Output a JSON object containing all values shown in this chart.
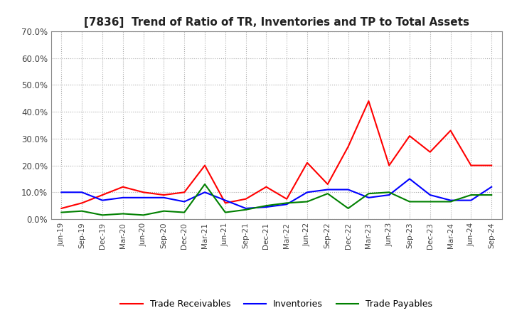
{
  "title": "[7836]  Trend of Ratio of TR, Inventories and TP to Total Assets",
  "x_labels": [
    "Jun-19",
    "Sep-19",
    "Dec-19",
    "Mar-20",
    "Jun-20",
    "Sep-20",
    "Dec-20",
    "Mar-21",
    "Jun-21",
    "Sep-21",
    "Dec-21",
    "Mar-22",
    "Jun-22",
    "Sep-22",
    "Dec-22",
    "Mar-23",
    "Jun-23",
    "Sep-23",
    "Dec-23",
    "Mar-24",
    "Jun-24",
    "Sep-24"
  ],
  "trade_receivables": [
    0.04,
    0.06,
    0.09,
    0.12,
    0.1,
    0.09,
    0.1,
    0.2,
    0.06,
    0.075,
    0.12,
    0.075,
    0.21,
    0.13,
    0.27,
    0.44,
    0.2,
    0.31,
    0.25,
    0.33,
    0.2,
    0.2
  ],
  "inventories": [
    0.1,
    0.1,
    0.07,
    0.08,
    0.08,
    0.08,
    0.065,
    0.1,
    0.07,
    0.04,
    0.045,
    0.055,
    0.1,
    0.11,
    0.11,
    0.08,
    0.09,
    0.15,
    0.09,
    0.07,
    0.07,
    0.12
  ],
  "trade_payables": [
    0.025,
    0.03,
    0.015,
    0.02,
    0.015,
    0.03,
    0.025,
    0.13,
    0.025,
    0.035,
    0.05,
    0.06,
    0.065,
    0.095,
    0.04,
    0.095,
    0.1,
    0.065,
    0.065,
    0.065,
    0.09,
    0.09
  ],
  "tr_color": "#ff0000",
  "inv_color": "#0000ff",
  "tp_color": "#008000",
  "ylim": [
    0.0,
    0.7
  ],
  "yticks": [
    0.0,
    0.1,
    0.2,
    0.3,
    0.4,
    0.5,
    0.6,
    0.7
  ],
  "legend_labels": [
    "Trade Receivables",
    "Inventories",
    "Trade Payables"
  ],
  "background_color": "#ffffff",
  "grid_color": "#aaaaaa"
}
